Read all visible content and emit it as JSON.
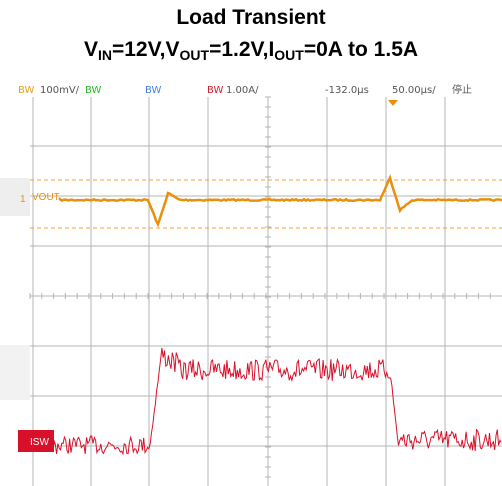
{
  "header": {
    "title": "Load Transient",
    "subtitle": [
      {
        "text": "V"
      },
      {
        "text": "IN",
        "sub": true
      },
      {
        "text": "=12V,V"
      },
      {
        "text": "OUT",
        "sub": true
      },
      {
        "text": "=1.2V,I"
      },
      {
        "text": "OUT",
        "sub": true
      },
      {
        "text": "=0A to 1.5A"
      }
    ]
  },
  "status_bar": [
    {
      "text": "BW",
      "color": "#e8a020"
    },
    {
      "text": "100mV/",
      "color": "#555"
    },
    {
      "text": "BW",
      "color": "#2db82d"
    },
    {
      "text": "BW",
      "color": "#4a7de0"
    },
    {
      "text": "BW",
      "color": "#d02030"
    },
    {
      "text": "1.00A/",
      "color": "#555"
    },
    {
      "text": "-132.0µs",
      "color": "#555"
    },
    {
      "text": "50.00µs/",
      "color": "#555"
    },
    {
      "text": "停止",
      "color": "#555"
    }
  ],
  "channels": {
    "vout_marker": "1",
    "vout": "VOUT",
    "isw": "ISW"
  }
}
